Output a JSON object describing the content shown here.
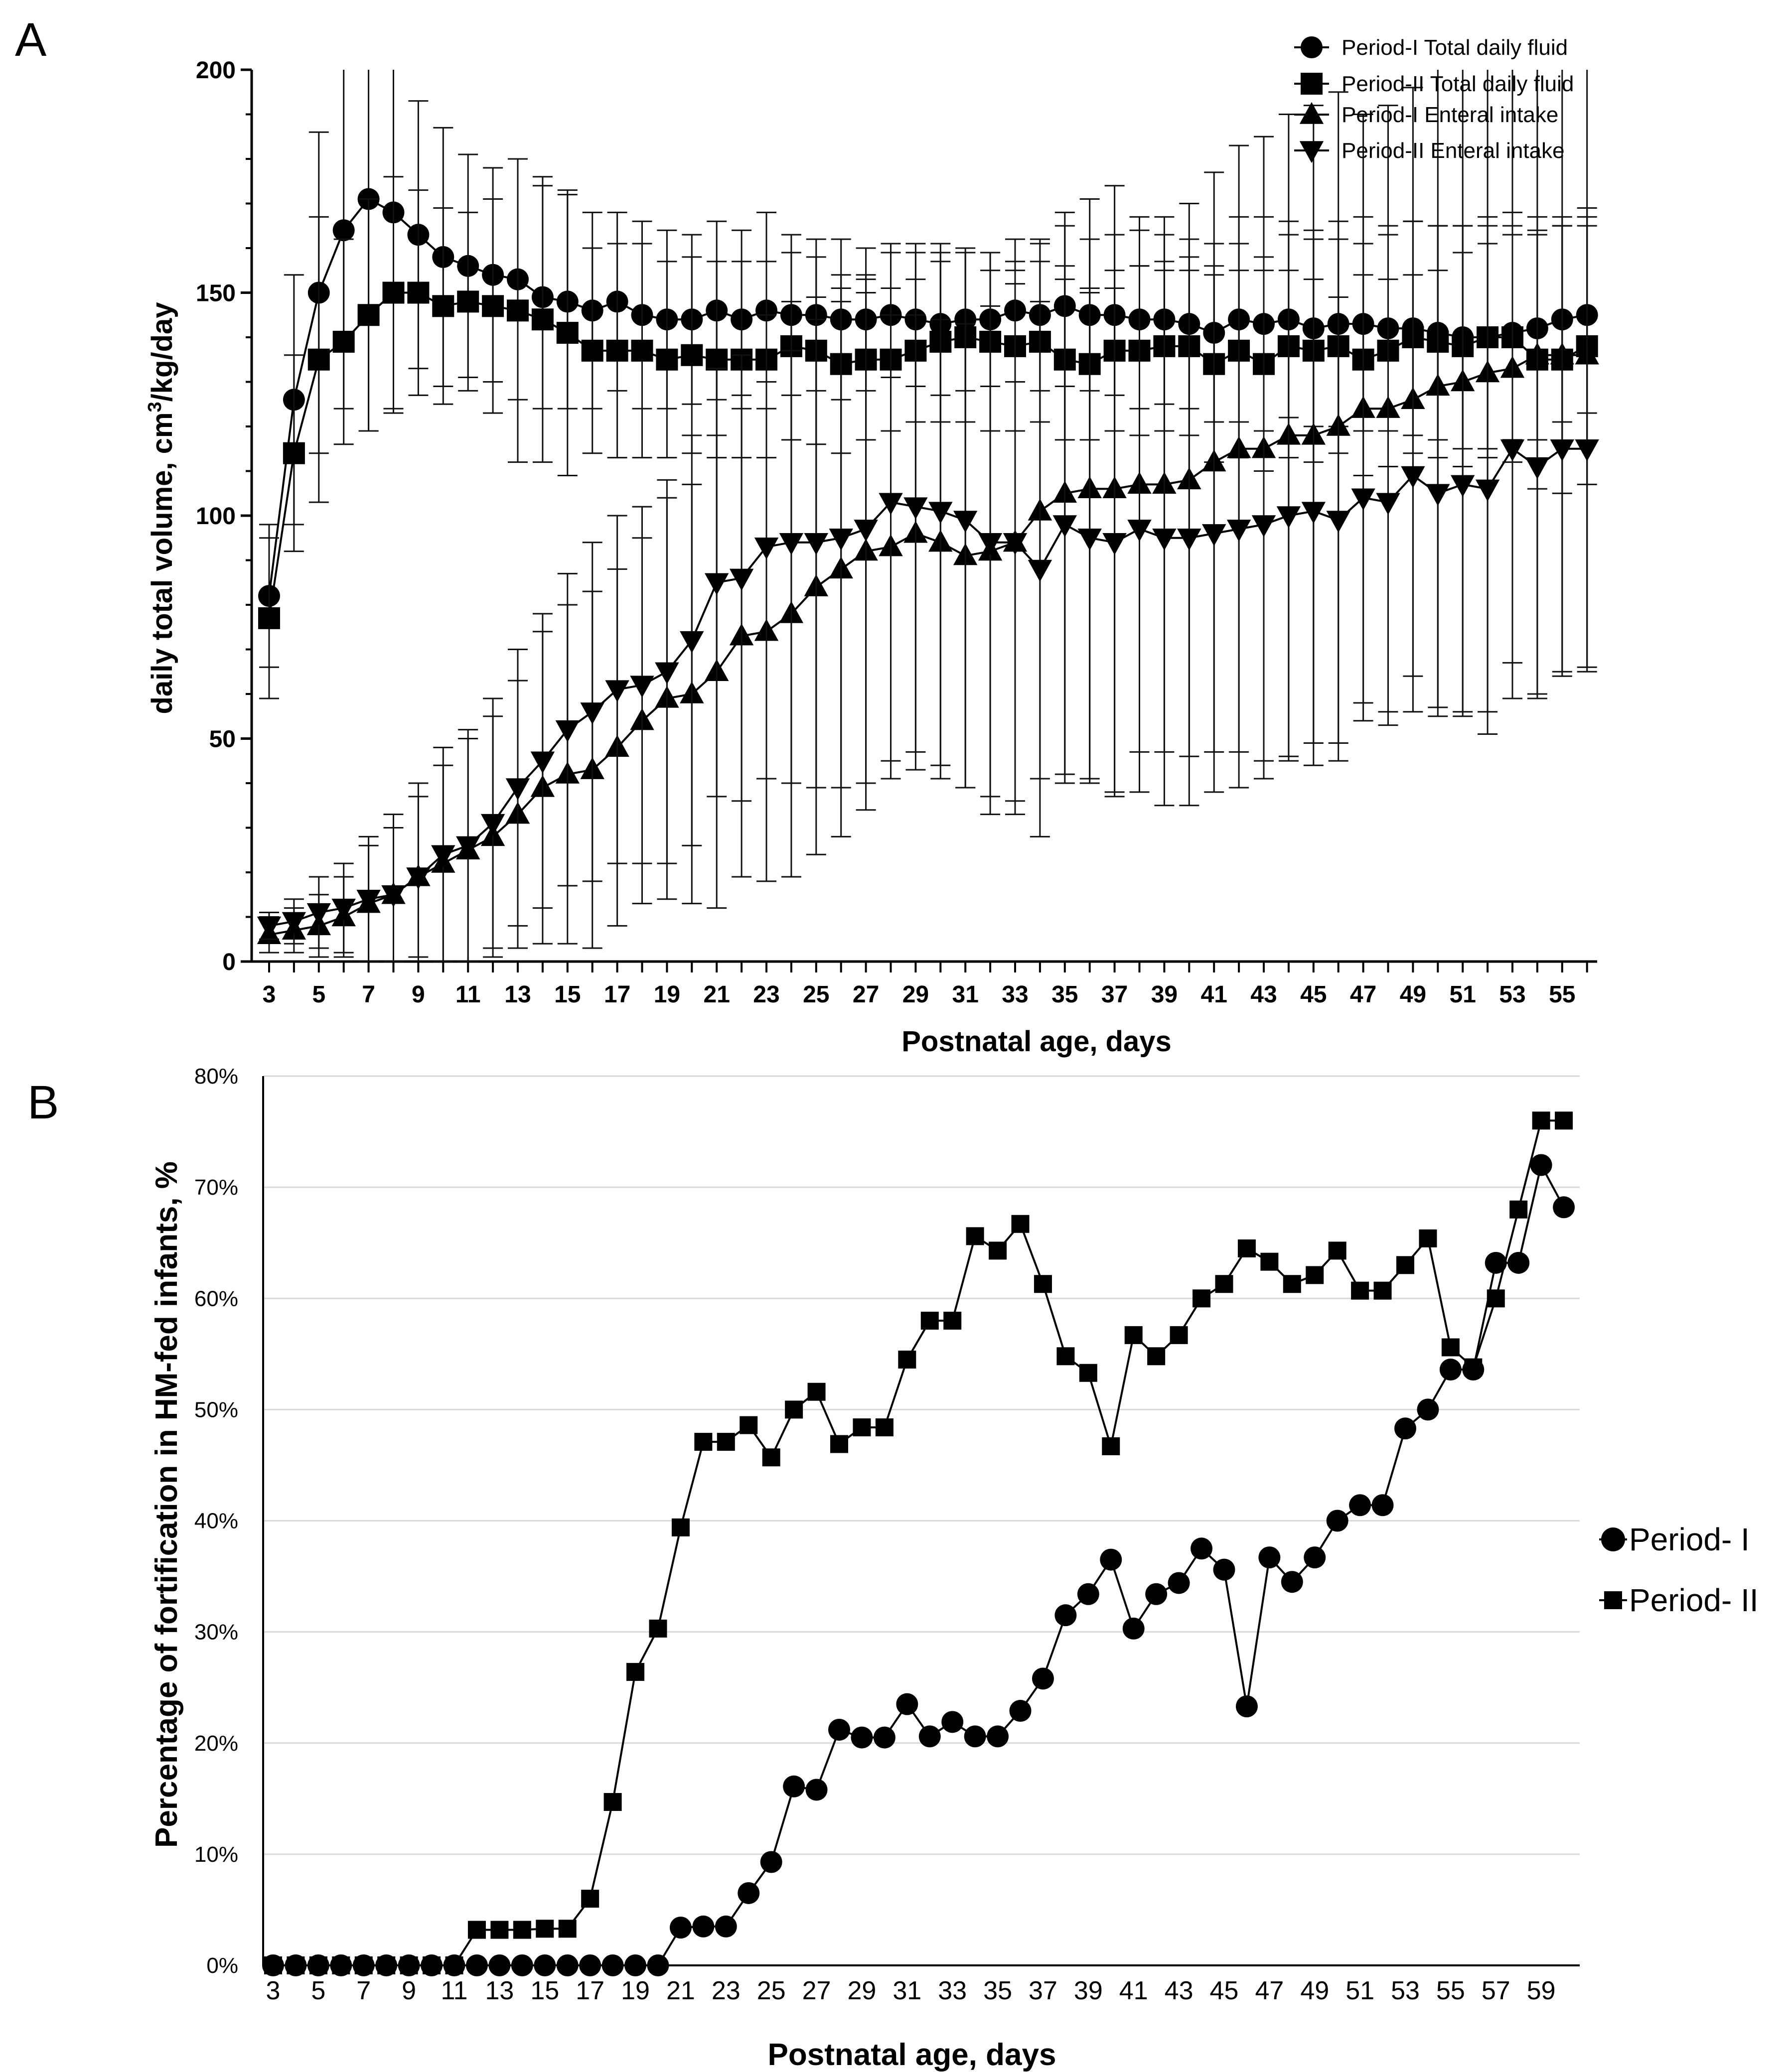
{
  "chart_data": [
    {
      "panel": "A",
      "type": "line",
      "xlabel": "Postnatal age, days",
      "ylabel": "daily total volume, cm³/kg/day",
      "ylabel_main": "daily total volume, cm",
      "ylabel_sup": "3",
      "ylabel_tail": "/kg/day",
      "xlim": [
        3,
        56
      ],
      "ylim": [
        0,
        200
      ],
      "yticks": [
        0,
        50,
        100,
        150,
        200
      ],
      "xticks": [
        3,
        5,
        7,
        9,
        11,
        13,
        15,
        17,
        19,
        21,
        23,
        25,
        27,
        29,
        31,
        33,
        35,
        37,
        39,
        41,
        43,
        45,
        47,
        49,
        51,
        53,
        55
      ],
      "x": [
        3,
        4,
        5,
        6,
        7,
        8,
        9,
        10,
        11,
        12,
        13,
        14,
        15,
        16,
        17,
        18,
        19,
        20,
        21,
        22,
        23,
        24,
        25,
        26,
        27,
        28,
        29,
        30,
        31,
        32,
        33,
        34,
        35,
        36,
        37,
        38,
        39,
        40,
        41,
        42,
        43,
        44,
        45,
        46,
        47,
        48,
        49,
        50,
        51,
        52,
        53,
        54,
        55,
        56
      ],
      "series": [
        {
          "name": "Period-I Total daily fluid",
          "marker": "circle",
          "values": [
            82,
            126,
            150,
            164,
            171,
            168,
            163,
            158,
            156,
            154,
            153,
            149,
            148,
            146,
            148,
            145,
            144,
            144,
            146,
            144,
            146,
            145,
            145,
            144,
            144,
            145,
            144,
            143,
            144,
            144,
            146,
            145,
            147,
            145,
            145,
            144,
            144,
            143,
            141,
            144,
            143,
            144,
            142,
            143,
            143,
            142,
            142,
            141,
            140,
            140,
            141,
            142,
            144,
            145
          ],
          "sd": [
            16,
            28,
            36,
            40,
            52,
            45,
            30,
            29,
            25,
            24,
            27,
            25,
            24,
            22,
            20,
            21,
            20,
            19,
            20,
            20,
            22,
            18,
            17,
            18,
            16,
            14,
            15,
            16,
            16,
            15,
            16,
            17,
            18,
            17,
            18,
            20,
            19,
            19,
            20,
            23,
            24,
            22,
            22,
            23,
            24,
            23,
            24,
            24,
            25,
            25,
            24,
            25,
            23,
            22
          ]
        },
        {
          "name": "Period-II Total daily fluid",
          "marker": "square",
          "values": [
            77,
            114,
            135,
            139,
            145,
            150,
            150,
            147,
            148,
            147,
            146,
            144,
            141,
            137,
            137,
            137,
            135,
            136,
            135,
            135,
            135,
            138,
            137,
            134,
            135,
            135,
            137,
            139,
            140,
            139,
            138,
            139,
            135,
            134,
            137,
            137,
            138,
            138,
            134,
            137,
            134,
            138,
            137,
            138,
            135,
            137,
            140,
            139,
            138,
            140,
            140,
            135,
            135,
            138
          ],
          "sd": [
            18,
            22,
            32,
            23,
            26,
            26,
            23,
            22,
            20,
            24,
            34,
            32,
            32,
            23,
            24,
            24,
            22,
            22,
            22,
            22,
            22,
            21,
            21,
            20,
            18,
            16,
            16,
            18,
            19,
            20,
            19,
            18,
            18,
            17,
            18,
            19,
            19,
            20,
            22,
            24,
            24,
            25,
            25,
            24,
            26,
            26,
            26,
            26,
            27,
            27,
            28,
            29,
            30,
            31
          ]
        },
        {
          "name": "Period-I Enteral intake",
          "marker": "triangle-up",
          "values": [
            6,
            7,
            8,
            10,
            13,
            15,
            19,
            22,
            25,
            28,
            33,
            39,
            42,
            43,
            48,
            54,
            59,
            60,
            65,
            73,
            74,
            78,
            84,
            88,
            92,
            93,
            96,
            94,
            91,
            92,
            94,
            101,
            105,
            106,
            106,
            107,
            107,
            108,
            112,
            115,
            115,
            118,
            118,
            120,
            124,
            124,
            126,
            129,
            130,
            132,
            133,
            136,
            136,
            136
          ],
          "sd": [
            4,
            5,
            7,
            9,
            13,
            15,
            18,
            22,
            25,
            27,
            30,
            35,
            38,
            40,
            40,
            41,
            45,
            47,
            53,
            54,
            56,
            59,
            60,
            60,
            58,
            52,
            49,
            50,
            52,
            55,
            58,
            60,
            63,
            65,
            68,
            60,
            60,
            62,
            65,
            68,
            70,
            72,
            74,
            75,
            66,
            68,
            70,
            72,
            74,
            76,
            74,
            76,
            72,
            70
          ]
        },
        {
          "name": "Period-II Enteral intake",
          "marker": "triangle-down",
          "values": [
            8,
            9,
            11,
            12,
            14,
            15,
            19,
            24,
            26,
            31,
            39,
            45,
            52,
            56,
            61,
            62,
            65,
            72,
            85,
            86,
            93,
            94,
            94,
            95,
            97,
            103,
            102,
            101,
            99,
            94,
            94,
            88,
            98,
            95,
            94,
            97,
            95,
            95,
            96,
            97,
            98,
            100,
            101,
            99,
            104,
            103,
            109,
            105,
            107,
            106,
            115,
            111,
            115,
            115
          ],
          "sd": [
            3,
            5,
            8,
            10,
            14,
            18,
            21,
            24,
            26,
            28,
            31,
            33,
            35,
            38,
            39,
            40,
            43,
            46,
            48,
            50,
            52,
            54,
            55,
            56,
            57,
            58,
            59,
            60,
            60,
            61,
            61,
            60,
            58,
            55,
            57,
            59,
            60,
            60,
            58,
            58,
            57,
            55,
            52,
            50,
            50,
            50,
            45,
            50,
            52,
            55,
            48,
            52,
            50,
            50
          ]
        }
      ],
      "legend": [
        "Period-I Total daily fluid",
        "Period-II Total daily fluid",
        "Period-I Enteral intake",
        "Period-II Enteral intake"
      ]
    },
    {
      "panel": "B",
      "type": "line",
      "xlabel": "Postnatal age, days",
      "ylabel": "Percentage of fortification in HM-fed infants, %",
      "xlim": [
        3,
        60
      ],
      "ylim": [
        0,
        80
      ],
      "yticks": [
        0,
        10,
        20,
        30,
        40,
        50,
        60,
        70,
        80
      ],
      "ytick_labels": [
        "0%",
        "10%",
        "20%",
        "30%",
        "40%",
        "50%",
        "60%",
        "70%",
        "80%"
      ],
      "xticks": [
        3,
        5,
        7,
        9,
        11,
        13,
        15,
        17,
        19,
        21,
        23,
        25,
        27,
        29,
        31,
        33,
        35,
        37,
        39,
        41,
        43,
        45,
        47,
        49,
        51,
        53,
        55,
        57,
        59
      ],
      "x": [
        3,
        4,
        5,
        6,
        7,
        8,
        9,
        10,
        11,
        12,
        13,
        14,
        15,
        16,
        17,
        18,
        19,
        20,
        21,
        22,
        23,
        24,
        25,
        26,
        27,
        28,
        29,
        30,
        31,
        32,
        33,
        34,
        35,
        36,
        37,
        38,
        39,
        40,
        41,
        42,
        43,
        44,
        45,
        46,
        47,
        48,
        49,
        50,
        51,
        52,
        53,
        54,
        55,
        56,
        57,
        58,
        59,
        60
      ],
      "series": [
        {
          "name": "Period- I",
          "marker": "circle",
          "values": [
            0,
            0,
            0,
            0,
            0,
            0,
            0,
            0,
            0,
            0,
            0,
            0,
            0,
            0,
            0,
            0,
            0,
            0,
            3.4,
            3.5,
            3.5,
            6.5,
            9.3,
            16.1,
            15.8,
            21.2,
            20.5,
            20.5,
            23.5,
            20.6,
            21.9,
            20.6,
            20.6,
            22.9,
            25.8,
            31.5,
            33.4,
            36.5,
            30.3,
            33.4,
            34.4,
            37.5,
            35.6,
            23.3,
            36.7,
            34.5,
            36.7,
            40.0,
            41.4,
            41.4,
            48.3,
            50.0,
            53.6,
            53.6,
            63.2,
            63.2,
            72.0,
            68.2
          ]
        },
        {
          "name": "Period- II",
          "marker": "square",
          "values": [
            0,
            0,
            0,
            0,
            0,
            0,
            0,
            0,
            0,
            3.2,
            3.2,
            3.2,
            3.3,
            3.3,
            6.0,
            14.7,
            26.4,
            30.3,
            39.4,
            47.1,
            47.1,
            48.6,
            45.7,
            50.0,
            51.6,
            46.9,
            48.4,
            48.4,
            54.5,
            58.0,
            58.0,
            65.6,
            64.3,
            66.7,
            61.3,
            54.8,
            53.3,
            46.7,
            56.7,
            54.8,
            56.7,
            60.0,
            61.3,
            64.5,
            63.3,
            61.3,
            62.1,
            64.3,
            60.7,
            60.7,
            63.0,
            65.4,
            55.6,
            53.8,
            60.0,
            68.0,
            76.0,
            76.0
          ]
        }
      ],
      "legend": [
        "Period- I",
        "Period- II"
      ]
    }
  ]
}
